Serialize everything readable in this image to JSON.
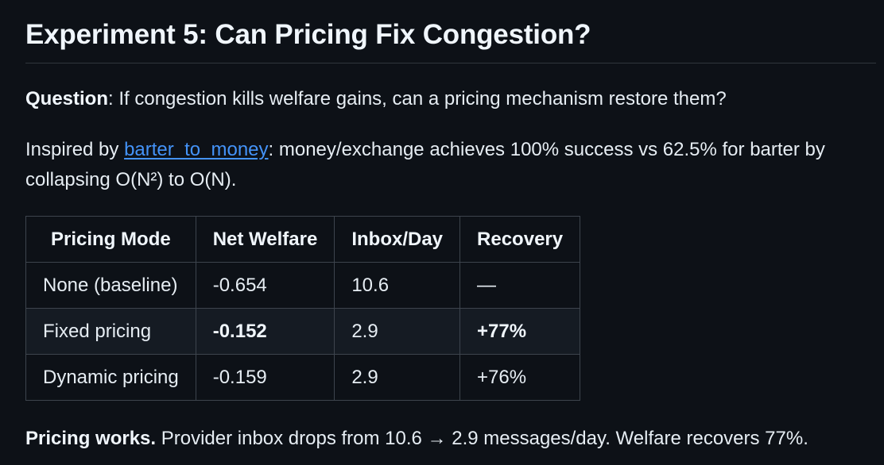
{
  "heading": "Experiment 5: Can Pricing Fix Congestion?",
  "question": {
    "label": "Question",
    "text": ": If congestion kills welfare gains, can a pricing mechanism restore them?"
  },
  "inspired": {
    "prefix": "Inspired by ",
    "link_text": "barter_to_money",
    "suffix": ": money/exchange achieves 100% success vs 62.5% for barter by collapsing O(N²) to O(N)."
  },
  "table": {
    "headers": [
      "Pricing Mode",
      "Net Welfare",
      "Inbox/Day",
      "Recovery"
    ],
    "rows": [
      [
        "None (baseline)",
        "-0.654",
        "10.6",
        "—"
      ],
      [
        "Fixed pricing",
        "-0.152",
        "2.9",
        "+77%"
      ],
      [
        "Dynamic pricing",
        "-0.159",
        "2.9",
        "+76%"
      ]
    ]
  },
  "conclusion": {
    "label": "Pricing works.",
    "text": " Provider inbox drops from 10.6 → 2.9 messages/day. Welfare recovers 77%."
  }
}
